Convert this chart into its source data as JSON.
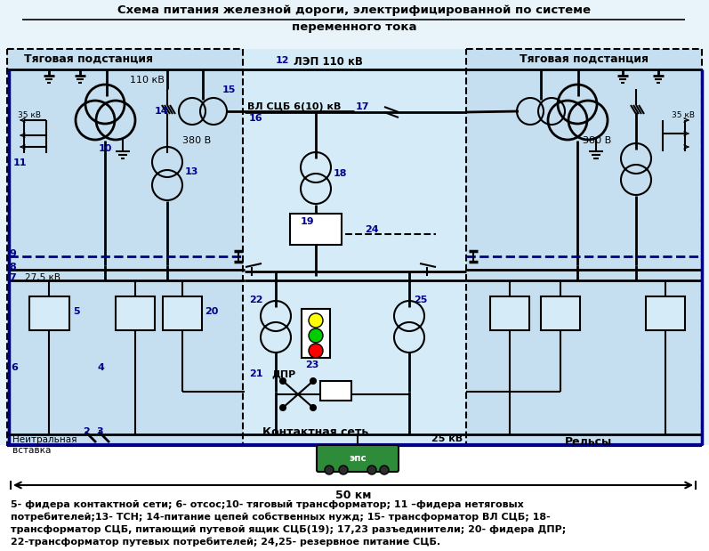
{
  "title_line1": "Схема питания железной дороги, электрифицированной по системе",
  "title_line2": "переменного тока",
  "fig_bg": "#FFFFFF",
  "bottom_text_line1": "5- фидера контактной сети; 6- отсос;10- тяговый трансформатор; 11 –фидера нетяговых",
  "bottom_text_line2": "потребителей;13- ТСН; 14-питание цепей собственных нужд; 15- трансформатор ВЛ СЦБ; 18-",
  "bottom_text_line3": "трансформатор СЦБ, питающий путевой ящик СЦБ(19); 17,23 разъединители; 20- фидера ДПР;",
  "bottom_text_line4": "22-трансформатор путевых потребителей; 24,25- резервное питание СЦБ."
}
